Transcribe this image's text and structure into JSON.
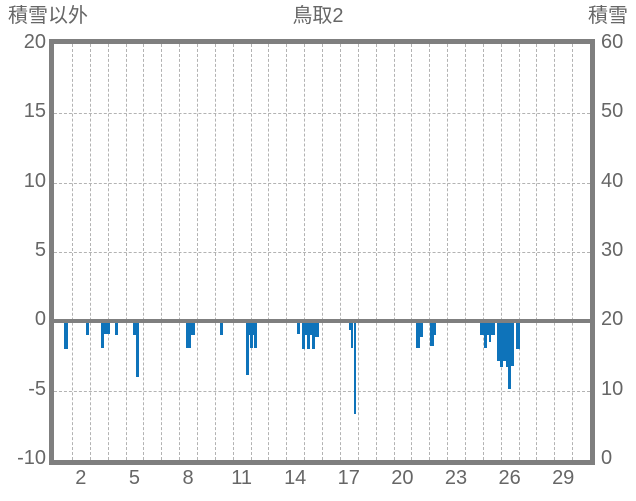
{
  "header": {
    "title": "鳥取2",
    "left_axis_label": "積雪以外",
    "right_axis_label": "積雪"
  },
  "colors": {
    "bar": "#0e73ba",
    "frame": "#7f7f7f",
    "zero_line": "#7f7f7f",
    "grid": "#b3b3b3",
    "text": "#666666",
    "background": "#ffffff"
  },
  "chart_data": {
    "type": "bar",
    "title": "鳥取2",
    "x_axis": {
      "min": 0.5,
      "max": 30.5,
      "tick_labels": [
        2,
        5,
        8,
        11,
        14,
        17,
        20,
        23,
        26,
        29
      ],
      "gridlines_at_day_boundaries": true,
      "first_gridline_day": 1.5,
      "last_gridline_day": 29.5
    },
    "left_axis": {
      "label": "積雪以外",
      "min": -10,
      "max": 20,
      "ticks": [
        20,
        15,
        10,
        5,
        0,
        -5,
        -10
      ],
      "dashed_gridlines": [
        15,
        10,
        5,
        -5
      ],
      "zero_line_value": 0
    },
    "right_axis": {
      "label": "積雪",
      "min": 0,
      "max": 60,
      "ticks": [
        60,
        50,
        40,
        30,
        20,
        10,
        0
      ]
    },
    "series": [
      {
        "name": "積雪以外",
        "axis": "left",
        "note": "downward bars from zero line; x = day of month (fractional), w = bar width in days, v = value on left axis",
        "bars": [
          {
            "x": 1.17,
            "w": 0.25,
            "v": -2.0
          },
          {
            "x": 2.38,
            "w": 0.2,
            "v": -1.0
          },
          {
            "x": 3.2,
            "w": 0.17,
            "v": -1.9
          },
          {
            "x": 3.46,
            "w": 0.35,
            "v": -0.9
          },
          {
            "x": 3.99,
            "w": 0.17,
            "v": -1.0
          },
          {
            "x": 4.98,
            "w": 0.17,
            "v": -1.0
          },
          {
            "x": 5.16,
            "w": 0.17,
            "v": -4.0
          },
          {
            "x": 8.02,
            "w": 0.25,
            "v": -1.9
          },
          {
            "x": 8.26,
            "w": 0.21,
            "v": -1.0
          },
          {
            "x": 9.9,
            "w": 0.18,
            "v": -1.0
          },
          {
            "x": 11.35,
            "w": 0.18,
            "v": -3.9
          },
          {
            "x": 11.46,
            "w": 0.05,
            "v": -1.0
          },
          {
            "x": 11.56,
            "w": 0.15,
            "v": -1.9
          },
          {
            "x": 11.67,
            "w": 0.07,
            "v": -1.0
          },
          {
            "x": 11.8,
            "w": 0.18,
            "v": -1.9
          },
          {
            "x": 14.2,
            "w": 0.17,
            "v": -0.9
          },
          {
            "x": 14.44,
            "w": 0.17,
            "v": -2.0
          },
          {
            "x": 14.58,
            "w": 0.11,
            "v": -1.0
          },
          {
            "x": 14.72,
            "w": 0.17,
            "v": -2.0
          },
          {
            "x": 14.86,
            "w": 0.11,
            "v": -1.0
          },
          {
            "x": 15.0,
            "w": 0.17,
            "v": -2.0
          },
          {
            "x": 15.2,
            "w": 0.24,
            "v": -1.1
          },
          {
            "x": 17.04,
            "w": 0.11,
            "v": -0.6
          },
          {
            "x": 17.19,
            "w": 0.12,
            "v": -1.9
          },
          {
            "x": 17.34,
            "w": 0.15,
            "v": -6.7
          },
          {
            "x": 20.86,
            "w": 0.21,
            "v": -1.9
          },
          {
            "x": 21.06,
            "w": 0.2,
            "v": -1.1
          },
          {
            "x": 21.64,
            "w": 0.21,
            "v": -1.8
          },
          {
            "x": 21.82,
            "w": 0.17,
            "v": -1.0
          },
          {
            "x": 24.44,
            "w": 0.24,
            "v": -1.0
          },
          {
            "x": 24.64,
            "w": 0.17,
            "v": -1.9
          },
          {
            "x": 24.78,
            "w": 0.11,
            "v": -1.0
          },
          {
            "x": 24.89,
            "w": 0.11,
            "v": -1.5
          },
          {
            "x": 25.05,
            "w": 0.21,
            "v": -1.0
          },
          {
            "x": 25.4,
            "w": 0.17,
            "v": -2.9
          },
          {
            "x": 25.57,
            "w": 0.17,
            "v": -3.3
          },
          {
            "x": 25.74,
            "w": 0.17,
            "v": -2.9
          },
          {
            "x": 25.87,
            "w": 0.11,
            "v": -3.3
          },
          {
            "x": 26.01,
            "w": 0.17,
            "v": -4.9
          },
          {
            "x": 26.18,
            "w": 0.17,
            "v": -3.2
          },
          {
            "x": 26.49,
            "w": 0.22,
            "v": -2.0
          }
        ]
      },
      {
        "name": "積雪",
        "axis": "right",
        "bars": []
      }
    ],
    "legend": "none",
    "grid": true
  }
}
